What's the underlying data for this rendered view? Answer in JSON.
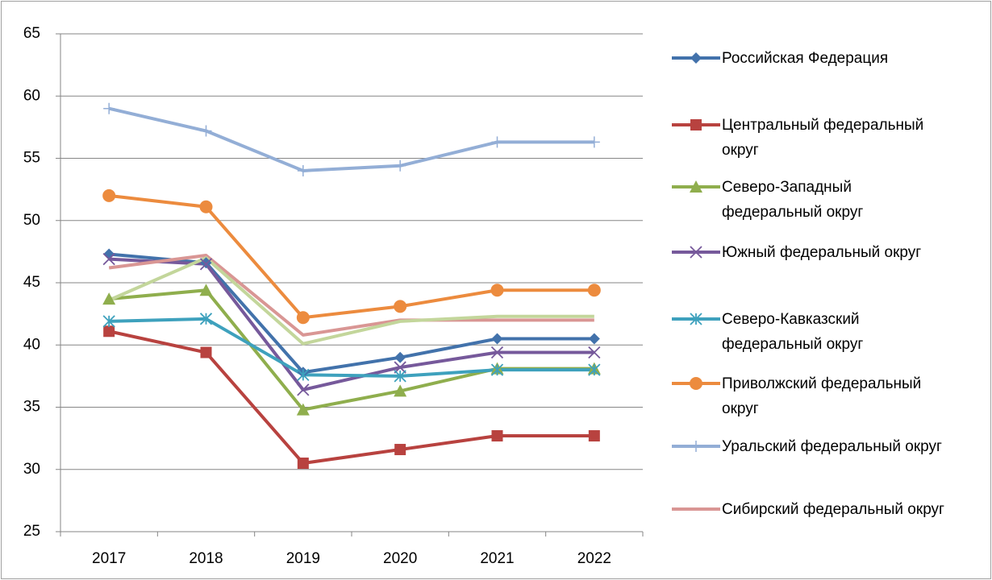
{
  "chart_data": {
    "type": "line",
    "categories": [
      "2017",
      "2018",
      "2019",
      "2020",
      "2021",
      "2022"
    ],
    "ylim": [
      25,
      65
    ],
    "yticks": [
      25,
      30,
      35,
      40,
      45,
      50,
      55,
      60,
      65
    ],
    "grid": true,
    "legend": "right",
    "series": [
      {
        "name": "Российская Федерация",
        "color": "#4272ab",
        "marker": "diamond",
        "values": [
          47.3,
          46.6,
          37.8,
          39.0,
          40.5,
          40.5
        ]
      },
      {
        "name": "Центральный федеральный округ",
        "color": "#b8423f",
        "marker": "square",
        "values": [
          41.1,
          39.4,
          30.5,
          31.6,
          32.7,
          32.7
        ]
      },
      {
        "name": "Северо-Западный федеральный округ",
        "color": "#8fae4d",
        "marker": "triangle",
        "values": [
          43.7,
          44.4,
          34.8,
          36.3,
          38.1,
          38.1
        ]
      },
      {
        "name": "Южный федеральный округ",
        "color": "#76599b",
        "marker": "x",
        "values": [
          46.9,
          46.5,
          36.4,
          38.2,
          39.4,
          39.4
        ]
      },
      {
        "name": "Северо-Кавказский федеральный округ",
        "color": "#3ea1bd",
        "marker": "star",
        "values": [
          41.9,
          42.1,
          37.6,
          37.5,
          38.0,
          38.0
        ]
      },
      {
        "name": "Приволжский федеральный округ",
        "color": "#ec8b3e",
        "marker": "circle",
        "values": [
          52.0,
          51.1,
          42.2,
          43.1,
          44.4,
          44.4
        ]
      },
      {
        "name": "Уральский федеральный округ",
        "color": "#93aed6",
        "marker": "plus",
        "values": [
          59.0,
          57.2,
          54.0,
          54.4,
          56.3,
          56.3
        ]
      },
      {
        "name": "Сибирский федеральный округ",
        "color": "#d99694",
        "marker": "none",
        "values": [
          46.2,
          47.2,
          40.8,
          42.0,
          42.0,
          42.0
        ]
      },
      {
        "color": "#c3d69b",
        "marker": "none",
        "values": [
          43.6,
          47.0,
          40.1,
          41.9,
          42.3,
          42.3
        ]
      }
    ]
  }
}
